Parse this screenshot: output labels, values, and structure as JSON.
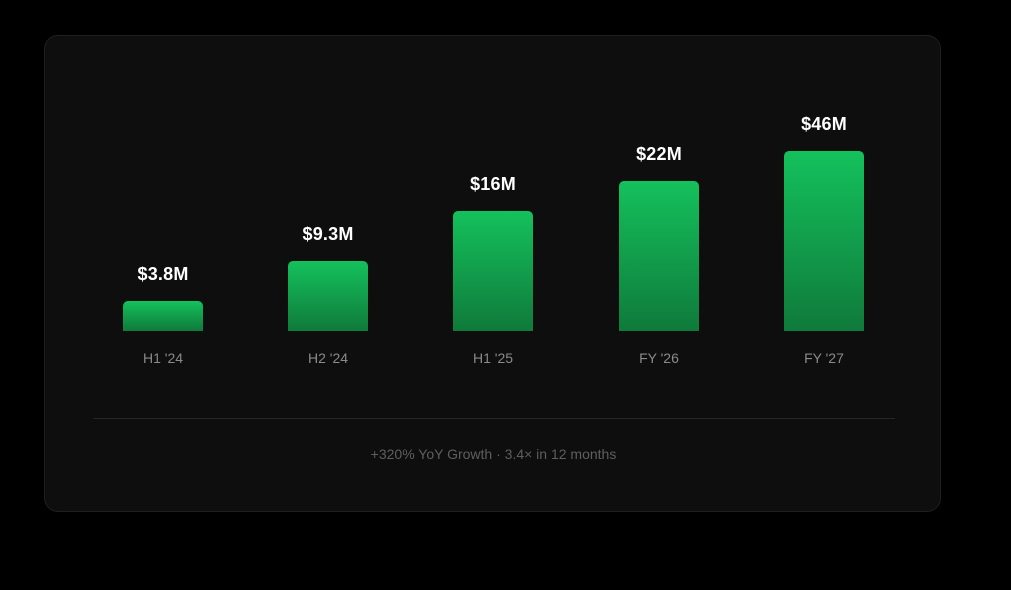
{
  "chart_data": {
    "type": "bar",
    "categories": [
      "H1 '24",
      "H2 '24",
      "H1 '25",
      "FY '26",
      "FY '27"
    ],
    "values": [
      3.8,
      9.3,
      16,
      22,
      46
    ],
    "data_labels": [
      "$3.8M",
      "$9.3M",
      "$16M",
      "$22M",
      "$46M"
    ],
    "title": "",
    "xlabel": "",
    "ylabel": "",
    "grid": false,
    "colors": {
      "bar_top": "#14c15c",
      "bar_bottom": "#0f7a3b",
      "value_text": "#ffffff",
      "category_text": "#8a8a8a"
    }
  },
  "footer": {
    "text": "+320% YoY Growth · 3.4× in 12 months"
  }
}
